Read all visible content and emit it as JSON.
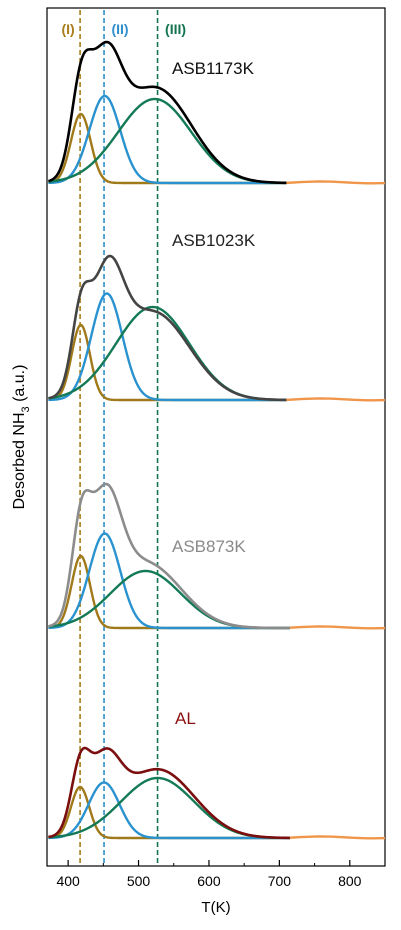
{
  "chart_data": {
    "type": "line",
    "xlabel": "T(K)",
    "ylabel_main": "Desorbed NH",
    "ylabel_sub": "3",
    "ylabel_tail": " (a.u.)",
    "xlim": [
      370,
      850
    ],
    "xticks": [
      400,
      500,
      600,
      700,
      800
    ],
    "vertical_lines": [
      {
        "label": "(I)",
        "x": 417,
        "color": "#a87d1a"
      },
      {
        "label": "(II)",
        "x": 451,
        "color": "#2f8fcf"
      },
      {
        "label": "(III)",
        "x": 527,
        "color": "#12744f"
      }
    ],
    "panels": [
      {
        "name": "ASB1173K",
        "name_color": "#111111",
        "total_color": "#000000",
        "total_peak_T": 433,
        "total_peak_height": 0.94,
        "components": [
          {
            "name": "I",
            "center": 418,
            "height": 0.46,
            "width": 14,
            "color": "#a07a1a"
          },
          {
            "name": "II",
            "center": 452,
            "height": 0.58,
            "width": 22,
            "color": "#2a93cf"
          },
          {
            "name": "III",
            "center": 523,
            "height": 0.56,
            "width": 52,
            "color": "#137a55"
          }
        ],
        "baseline_end_T": 710
      },
      {
        "name": "ASB1023K",
        "name_color": "#222222",
        "total_color": "#444444",
        "total_peak_T": 436,
        "total_peak_height": 0.96,
        "components": [
          {
            "name": "I",
            "center": 418,
            "height": 0.5,
            "width": 13,
            "color": "#a07a1a"
          },
          {
            "name": "II",
            "center": 455,
            "height": 0.71,
            "width": 22,
            "color": "#2a93cf"
          },
          {
            "name": "III",
            "center": 520,
            "height": 0.62,
            "width": 52,
            "color": "#137a55"
          }
        ],
        "baseline_end_T": 710
      },
      {
        "name": "ASB873K",
        "name_color": "#8a8a8a",
        "total_color": "#8c8c8c",
        "total_peak_T": 437,
        "total_peak_height": 0.96,
        "components": [
          {
            "name": "I",
            "center": 418,
            "height": 0.48,
            "width": 13,
            "color": "#a07a1a"
          },
          {
            "name": "II",
            "center": 452,
            "height": 0.63,
            "width": 22,
            "color": "#2a93cf"
          },
          {
            "name": "III",
            "center": 510,
            "height": 0.38,
            "width": 50,
            "color": "#137a55"
          }
        ],
        "baseline_end_T": 715
      },
      {
        "name": "AL",
        "name_color": "#8b1010",
        "total_color": "#7b0e0e",
        "total_peak_T": 428,
        "total_peak_height": 0.6,
        "components": [
          {
            "name": "I",
            "center": 417,
            "height": 0.34,
            "width": 13,
            "color": "#a07a1a"
          },
          {
            "name": "II",
            "center": 451,
            "height": 0.37,
            "width": 22,
            "color": "#2a93cf"
          },
          {
            "name": "III",
            "center": 527,
            "height": 0.4,
            "width": 52,
            "color": "#137a55"
          }
        ],
        "baseline_end_T": 715
      }
    ],
    "tail_color": "#f0964a",
    "grid": false,
    "legend": "none"
  }
}
